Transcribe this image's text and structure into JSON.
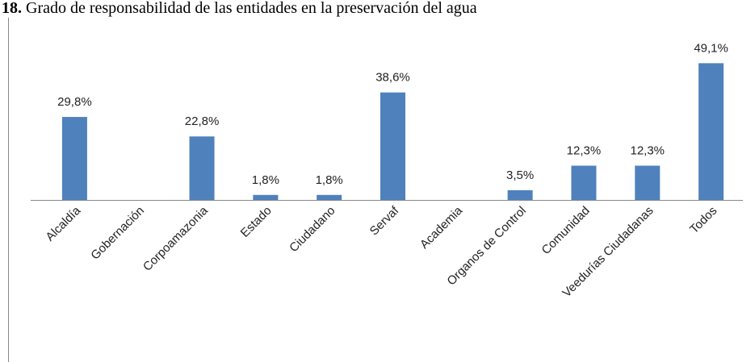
{
  "chart_data": {
    "type": "bar",
    "title_number": "18.",
    "title": "Grado de responsabilidad de las entidades en la preservación del agua",
    "categories": [
      "Alcaldía",
      "Gobernación",
      "Corpoamazonia",
      "Estado",
      "Ciudadano",
      "Servaf",
      "Academia",
      "Organos de Control",
      "Comunidad",
      "Veedurías Ciudadanas",
      "Todos"
    ],
    "values": [
      29.8,
      0,
      22.8,
      1.8,
      1.8,
      38.6,
      0,
      3.5,
      12.3,
      12.3,
      49.1
    ],
    "value_labels": [
      "29,8%",
      null,
      "22,8%",
      "1,8%",
      "1,8%",
      "38,6%",
      null,
      "3,5%",
      "12,3%",
      "12,3%",
      "49,1%"
    ],
    "color": "#4f81bd",
    "ylim": [
      0,
      55
    ]
  }
}
